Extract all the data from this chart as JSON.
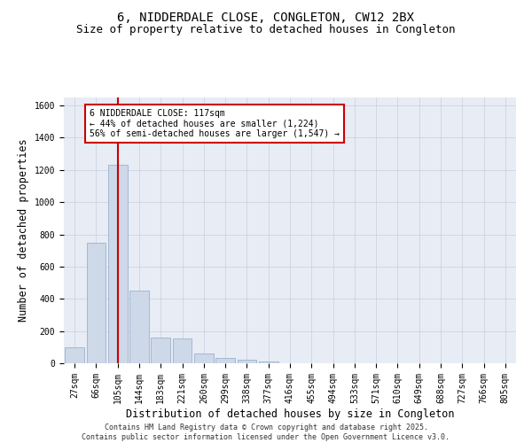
{
  "title_line1": "6, NIDDERDALE CLOSE, CONGLETON, CW12 2BX",
  "title_line2": "Size of property relative to detached houses in Congleton",
  "xlabel": "Distribution of detached houses by size in Congleton",
  "ylabel": "Number of detached properties",
  "categories": [
    "27sqm",
    "66sqm",
    "105sqm",
    "144sqm",
    "183sqm",
    "221sqm",
    "260sqm",
    "299sqm",
    "338sqm",
    "377sqm",
    "416sqm",
    "455sqm",
    "494sqm",
    "533sqm",
    "571sqm",
    "610sqm",
    "649sqm",
    "688sqm",
    "727sqm",
    "766sqm",
    "805sqm"
  ],
  "values": [
    100,
    750,
    1230,
    450,
    160,
    155,
    60,
    35,
    20,
    13,
    0,
    0,
    0,
    0,
    0,
    0,
    0,
    0,
    0,
    0,
    0
  ],
  "bar_color": "#cdd8e8",
  "bar_edge_color": "#8fa8c8",
  "vline_x": 2,
  "vline_color": "#cc0000",
  "annotation_text": "6 NIDDERDALE CLOSE: 117sqm\n← 44% of detached houses are smaller (1,224)\n56% of semi-detached houses are larger (1,547) →",
  "annotation_box_color": "#cc0000",
  "annotation_bg": "#ffffff",
  "ylim": [
    0,
    1650
  ],
  "yticks": [
    0,
    200,
    400,
    600,
    800,
    1000,
    1200,
    1400,
    1600
  ],
  "grid_color": "#c8d0de",
  "bg_color": "#e8ecf5",
  "footer": "Contains HM Land Registry data © Crown copyright and database right 2025.\nContains public sector information licensed under the Open Government Licence v3.0.",
  "title_fontsize": 10,
  "subtitle_fontsize": 9,
  "tick_fontsize": 7,
  "label_fontsize": 8.5,
  "footer_fontsize": 6
}
